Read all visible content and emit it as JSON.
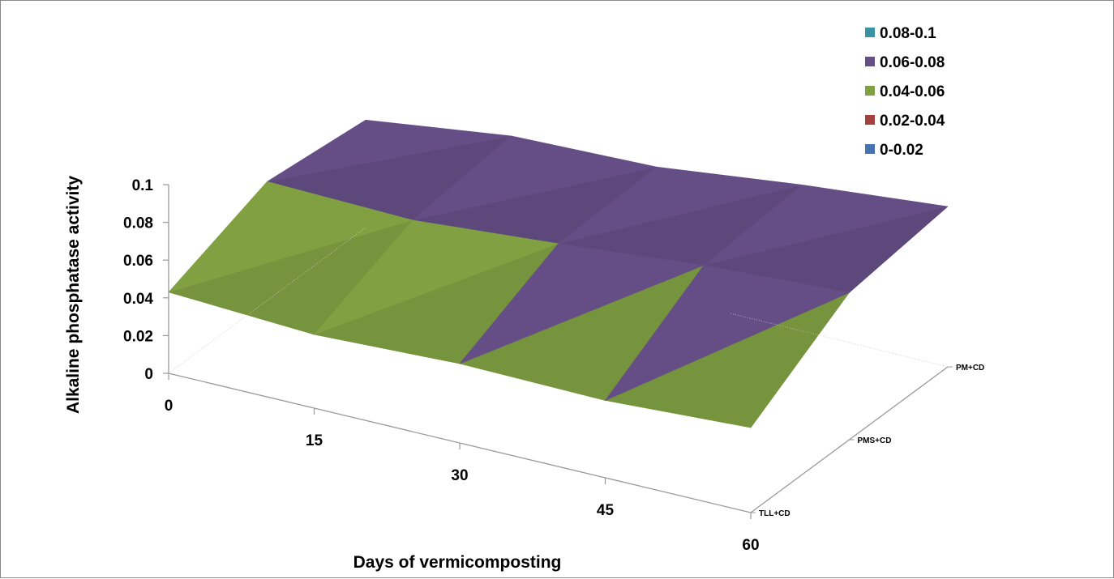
{
  "chart_data": {
    "type": "surface-3d",
    "ylabel": "Alkaline phosphatase activity",
    "xlabel": "Days of vermicomposting",
    "x_categories": [
      "0",
      "15",
      "30",
      "45",
      "60"
    ],
    "depth_categories": [
      "TLL+CD",
      "PMS+CD",
      "PM+CD"
    ],
    "y_ticks": [
      "0",
      "0.02",
      "0.04",
      "0.06",
      "0.08",
      "0.1"
    ],
    "ylim": [
      0,
      0.1
    ],
    "series": [
      {
        "name": "TLL+CD",
        "values": [
          0.043,
          0.039,
          0.042,
          0.041,
          0.045
        ]
      },
      {
        "name": "PMS+CD",
        "values": [
          0.063,
          0.061,
          0.067,
          0.074,
          0.078
        ]
      },
      {
        "name": "PM+CD",
        "values": [
          0.057,
          0.067,
          0.069,
          0.078,
          0.085
        ]
      }
    ],
    "legend": {
      "position": "top-right",
      "bands": [
        {
          "label": "0.08-0.1",
          "color": "#3a93a2"
        },
        {
          "label": "0.06-0.08",
          "color": "#654e86"
        },
        {
          "label": "0.04-0.06",
          "color": "#80a042"
        },
        {
          "label": "0.02-0.04",
          "color": "#a33f3d"
        },
        {
          "label": "0-0.02",
          "color": "#4473b0"
        }
      ]
    },
    "grid": false
  }
}
